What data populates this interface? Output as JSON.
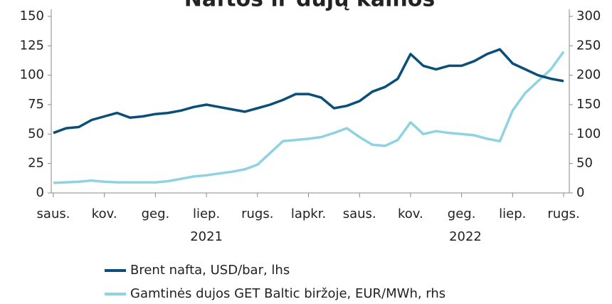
{
  "chart_data": {
    "type": "line",
    "title": "Naftos ir dujų kainos",
    "categories": [
      "saus.",
      null,
      null,
      null,
      "kov.",
      null,
      null,
      null,
      "geg.",
      null,
      null,
      null,
      "liep.",
      null,
      null,
      null,
      "rugs.",
      null,
      null,
      null,
      "lapkr.",
      null,
      null,
      null,
      "saus.",
      null,
      null,
      null,
      "kov.",
      null,
      null,
      null,
      "geg.",
      null,
      null,
      null,
      "liep.",
      null,
      null,
      null,
      "rugs."
    ],
    "years": [
      "2021",
      "2022"
    ],
    "series": [
      {
        "name": "Brent nafta, USD/bar, lhs",
        "color": "#0b4f79",
        "axis": "y",
        "values": [
          51,
          55,
          56,
          62,
          65,
          68,
          64,
          65,
          67,
          68,
          70,
          73,
          75,
          73,
          71,
          69,
          72,
          75,
          79,
          84,
          84,
          81,
          72,
          74,
          78,
          86,
          90,
          97,
          118,
          108,
          105,
          108,
          108,
          112,
          118,
          122,
          110,
          105,
          100,
          97,
          95
        ]
      },
      {
        "name": "Gamtinės dujos GET Baltic biržoje, EUR/MWh, rhs",
        "color": "#8fd3e3",
        "axis": "y2",
        "values": [
          17,
          18,
          19,
          21,
          19,
          18,
          18,
          18,
          18,
          20,
          24,
          28,
          30,
          33,
          36,
          40,
          48,
          68,
          88,
          90,
          92,
          95,
          102,
          110,
          95,
          82,
          80,
          90,
          120,
          100,
          105,
          102,
          100,
          98,
          92,
          88,
          140,
          170,
          190,
          210,
          240
        ]
      }
    ],
    "ylim": [
      0,
      150
    ],
    "yticks": [
      0,
      25,
      50,
      75,
      100,
      125,
      150
    ],
    "y2lim": [
      0,
      300
    ],
    "y2ticks": [
      0,
      50,
      100,
      150,
      200,
      250,
      300
    ]
  }
}
